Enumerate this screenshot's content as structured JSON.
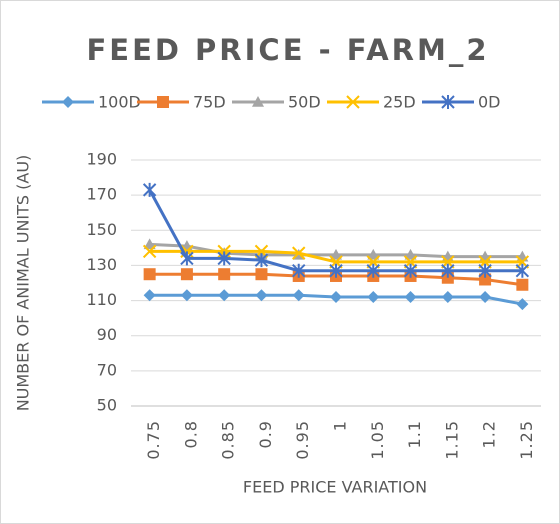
{
  "chart_data": {
    "type": "line",
    "title": "FEED PRICE - FARM_2",
    "x_label": "FEED PRICE VARIATION",
    "y_label": "NUMBER OF ANIMAL UNITS (AU)",
    "categories": [
      "0.75",
      "0.8",
      "0.85",
      "0.9",
      "0.95",
      "1",
      "1.05",
      "1.1",
      "1.15",
      "1.2",
      "1.25"
    ],
    "ylim": [
      50,
      190
    ],
    "yticks": [
      50,
      70,
      90,
      110,
      130,
      150,
      170,
      190
    ],
    "grid": true,
    "legend": "top",
    "series": [
      {
        "name": "100D",
        "color": "#5b9bd5",
        "marker": "diamond",
        "values": [
          113,
          113,
          113,
          113,
          113,
          112,
          112,
          112,
          112,
          112,
          108
        ]
      },
      {
        "name": "75D",
        "color": "#ed7d31",
        "marker": "square",
        "values": [
          125,
          125,
          125,
          125,
          124,
          124,
          124,
          124,
          123,
          122,
          119
        ]
      },
      {
        "name": "50D",
        "color": "#a5a5a5",
        "marker": "triangle",
        "values": [
          142,
          141,
          137,
          136,
          136,
          136,
          136,
          136,
          135,
          135,
          135
        ]
      },
      {
        "name": "25D",
        "color": "#ffc000",
        "marker": "x",
        "values": [
          138,
          138,
          138,
          138,
          137,
          132,
          132,
          132,
          132,
          132,
          132
        ]
      },
      {
        "name": "0D",
        "color": "#4472c4",
        "marker": "star",
        "values": [
          173,
          134,
          134,
          133,
          127,
          127,
          127,
          127,
          127,
          127,
          127
        ]
      }
    ]
  }
}
